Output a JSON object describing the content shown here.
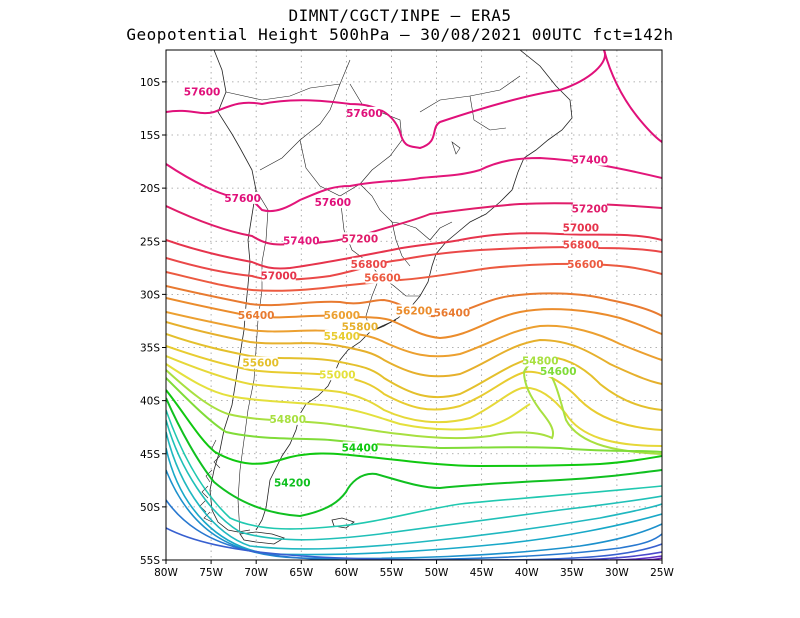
{
  "title_line1": "DIMNT/CGCT/INPE —  ERA5",
  "title_line2": "Geopotential Height 500hPa —  30/08/2021 00UTC fct=142h",
  "map": {
    "lon_range": [
      -80,
      -25
    ],
    "lat_range": [
      -55,
      -7
    ],
    "x_ticks": [
      {
        "lon": -80,
        "label": "80W"
      },
      {
        "lon": -75,
        "label": "75W"
      },
      {
        "lon": -70,
        "label": "70W"
      },
      {
        "lon": -65,
        "label": "65W"
      },
      {
        "lon": -60,
        "label": "60W"
      },
      {
        "lon": -55,
        "label": "55W"
      },
      {
        "lon": -50,
        "label": "50W"
      },
      {
        "lon": -45,
        "label": "45W"
      },
      {
        "lon": -40,
        "label": "40W"
      },
      {
        "lon": -35,
        "label": "35W"
      },
      {
        "lon": -30,
        "label": "30W"
      },
      {
        "lon": -25,
        "label": "25W"
      }
    ],
    "y_ticks": [
      {
        "lat": -10,
        "label": "10S"
      },
      {
        "lat": -15,
        "label": "15S"
      },
      {
        "lat": -20,
        "label": "20S"
      },
      {
        "lat": -25,
        "label": "25S"
      },
      {
        "lat": -30,
        "label": "30S"
      },
      {
        "lat": -35,
        "label": "35S"
      },
      {
        "lat": -40,
        "label": "40S"
      },
      {
        "lat": -45,
        "label": "45S"
      },
      {
        "lat": -50,
        "label": "50S"
      },
      {
        "lat": -55,
        "label": "55S"
      }
    ],
    "grid": true,
    "contour_colors": {
      "57600": "#e0107a",
      "57400": "#e2167a",
      "57200": "#e01c6a",
      "57000": "#e6344c",
      "56800": "#ea4848",
      "56600": "#ec5a40",
      "56400": "#e87a30",
      "56200": "#eb8c2c",
      "56000": "#eca030",
      "55800": "#e6b02c",
      "55600": "#e4c02c",
      "55400": "#e8cc30",
      "55200": "#e6d838",
      "55000": "#e4e03c",
      "54800": "#a8e040",
      "54600": "#80dc38",
      "54400": "#10c810",
      "54200": "#10c020",
      "cold": "#20c8b0",
      "deep": "#7020c0"
    },
    "contour_labels": [
      {
        "text": "57600",
        "lon": -76,
        "lat": -11.2,
        "color": "#e0107a"
      },
      {
        "text": "57600",
        "lon": -58,
        "lat": -13.2,
        "color": "#e0107a"
      },
      {
        "text": "57400",
        "lon": -33,
        "lat": -17.6,
        "color": "#e2167a"
      },
      {
        "text": "57600",
        "lon": -71.5,
        "lat": -21.2,
        "color": "#e0107a"
      },
      {
        "text": "57600",
        "lon": -61.5,
        "lat": -21.6,
        "color": "#e0107a"
      },
      {
        "text": "57200",
        "lon": -33,
        "lat": -22.2,
        "color": "#e01c6a"
      },
      {
        "text": "57400",
        "lon": -65,
        "lat": -25.2,
        "color": "#e2167a"
      },
      {
        "text": "57200",
        "lon": -58.5,
        "lat": -25.0,
        "color": "#e01c6a"
      },
      {
        "text": "57000",
        "lon": -34,
        "lat": -24.0,
        "color": "#e6344c"
      },
      {
        "text": "56800",
        "lon": -34,
        "lat": -25.6,
        "color": "#ea4848"
      },
      {
        "text": "56800",
        "lon": -57.5,
        "lat": -27.4,
        "color": "#ea4848"
      },
      {
        "text": "56600",
        "lon": -33.5,
        "lat": -27.4,
        "color": "#ec5a40"
      },
      {
        "text": "57000",
        "lon": -67.5,
        "lat": -28.5,
        "color": "#e6344c"
      },
      {
        "text": "56600",
        "lon": -56,
        "lat": -28.7,
        "color": "#ec5a40"
      },
      {
        "text": "56400",
        "lon": -70,
        "lat": -32.2,
        "color": "#e87a30"
      },
      {
        "text": "56000",
        "lon": -60.5,
        "lat": -32.2,
        "color": "#eca030"
      },
      {
        "text": "56200",
        "lon": -52.5,
        "lat": -31.8,
        "color": "#eb8c2c"
      },
      {
        "text": "56400",
        "lon": -48.3,
        "lat": -32.0,
        "color": "#e87a30"
      },
      {
        "text": "55800",
        "lon": -58.5,
        "lat": -33.3,
        "color": "#e6b02c"
      },
      {
        "text": "55400",
        "lon": -60.5,
        "lat": -34.2,
        "color": "#e8cc30"
      },
      {
        "text": "55600",
        "lon": -69.5,
        "lat": -36.7,
        "color": "#e4c02c"
      },
      {
        "text": "54800",
        "lon": -38.5,
        "lat": -36.5,
        "color": "#a8e040"
      },
      {
        "text": "54600",
        "lon": -36.5,
        "lat": -37.5,
        "color": "#80dc38"
      },
      {
        "text": "55000",
        "lon": -61,
        "lat": -37.8,
        "color": "#e4e03c"
      },
      {
        "text": "54800",
        "lon": -66.5,
        "lat": -42.0,
        "color": "#a8e040"
      },
      {
        "text": "54400",
        "lon": -58.5,
        "lat": -44.7,
        "color": "#10c810"
      },
      {
        "text": "54200",
        "lon": -66,
        "lat": -48.0,
        "color": "#10c020"
      }
    ]
  }
}
